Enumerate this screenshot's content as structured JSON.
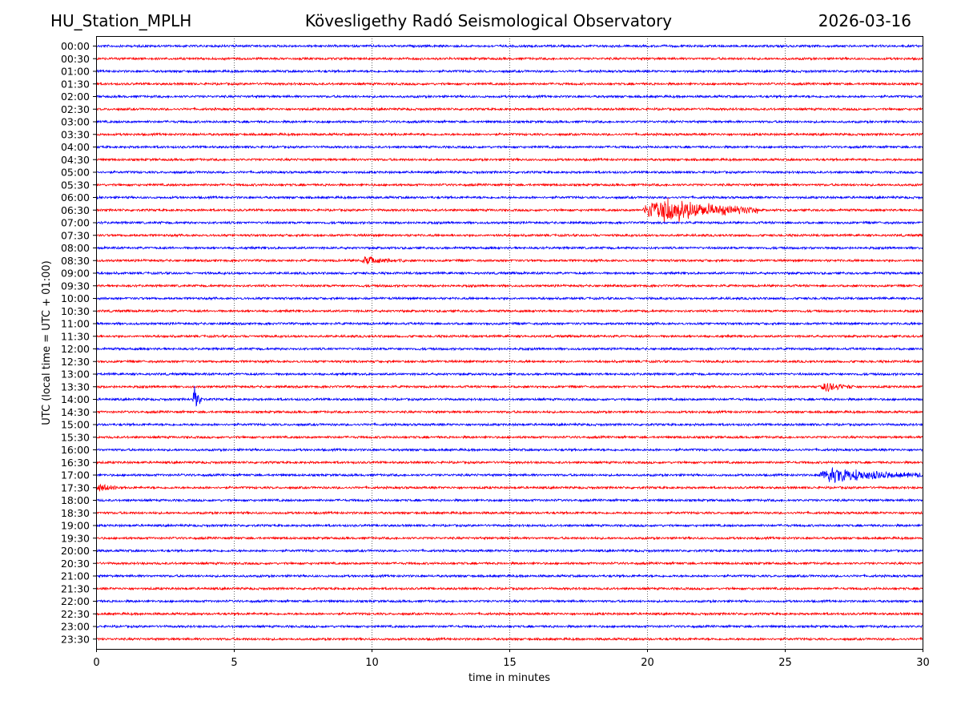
{
  "header": {
    "station": "HU_Station_MPLH",
    "observatory": "Kövesligethy Radó Seismological Observatory",
    "date": "2026-03-16"
  },
  "chart_data": {
    "type": "line",
    "title": "Kövesligethy Radó Seismological Observatory",
    "xlabel": "time in minutes",
    "ylabel": "UTC (local time = UTC + 01:00)",
    "xlim": [
      0,
      30
    ],
    "xticks": [
      "0",
      "5",
      "10",
      "15",
      "20",
      "25",
      "30"
    ],
    "grid": "vertical dotted at every 5 minutes",
    "trace_colors": [
      "#0000ff",
      "#ff0000"
    ],
    "rows": [
      "00:00",
      "00:30",
      "01:00",
      "01:30",
      "02:00",
      "02:30",
      "03:00",
      "03:30",
      "04:00",
      "04:30",
      "05:00",
      "05:30",
      "06:00",
      "06:30",
      "07:00",
      "07:30",
      "08:00",
      "08:30",
      "09:00",
      "09:30",
      "10:00",
      "10:30",
      "11:00",
      "11:30",
      "12:00",
      "12:30",
      "13:00",
      "13:30",
      "14:00",
      "14:30",
      "15:00",
      "15:30",
      "16:00",
      "16:30",
      "17:00",
      "17:30",
      "18:00",
      "18:30",
      "19:00",
      "19:30",
      "20:00",
      "20:30",
      "21:00",
      "21:30",
      "22:00",
      "22:30",
      "23:00",
      "23:30"
    ],
    "events": [
      {
        "row": "06:30",
        "start_min": 19.8,
        "end_min": 24.0,
        "peak_amplitude": 1.0
      },
      {
        "row": "08:30",
        "start_min": 9.6,
        "end_min": 11.2,
        "peak_amplitude": 0.25
      },
      {
        "row": "13:30",
        "start_min": 26.3,
        "end_min": 27.5,
        "peak_amplitude": 0.35
      },
      {
        "row": "14:00",
        "start_min": 3.5,
        "end_min": 3.9,
        "peak_amplitude": 0.9
      },
      {
        "row": "17:00",
        "start_min": 26.2,
        "end_min": 30.0,
        "peak_amplitude": 0.5
      },
      {
        "row": "17:30",
        "start_min": 0.0,
        "end_min": 0.9,
        "peak_amplitude": 0.3
      }
    ]
  }
}
